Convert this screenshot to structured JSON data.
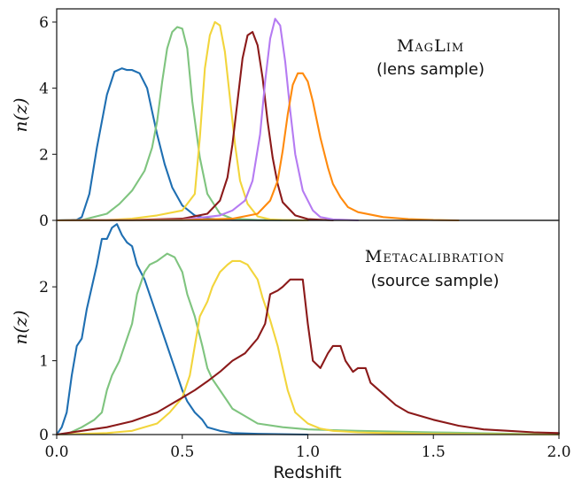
{
  "chart_data": [
    {
      "type": "line",
      "ylabel": "n(z)",
      "xlim": [
        0.0,
        2.0
      ],
      "ylim": [
        0,
        6.4
      ],
      "yticks": [
        0,
        2,
        4,
        6
      ],
      "annotation_title": "MagLim",
      "annotation_subtitle": "(lens sample)",
      "series": [
        {
          "color": "#1f6fb2",
          "x": [
            0.0,
            0.08,
            0.1,
            0.13,
            0.16,
            0.2,
            0.23,
            0.26,
            0.28,
            0.3,
            0.33,
            0.36,
            0.38,
            0.4,
            0.43,
            0.46,
            0.5,
            0.55,
            0.6,
            0.7,
            1.0
          ],
          "y": [
            0,
            0.02,
            0.1,
            0.8,
            2.2,
            3.8,
            4.5,
            4.6,
            4.55,
            4.55,
            4.45,
            4.0,
            3.3,
            2.6,
            1.7,
            1.0,
            0.45,
            0.15,
            0.05,
            0.01,
            0
          ]
        },
        {
          "color": "#7fc47f",
          "x": [
            0.0,
            0.1,
            0.2,
            0.25,
            0.3,
            0.35,
            0.38,
            0.4,
            0.42,
            0.44,
            0.46,
            0.48,
            0.5,
            0.52,
            0.54,
            0.57,
            0.6,
            0.65,
            0.7,
            0.8,
            1.0
          ],
          "y": [
            0,
            0.01,
            0.2,
            0.5,
            0.9,
            1.5,
            2.2,
            3.0,
            4.2,
            5.2,
            5.7,
            5.85,
            5.8,
            5.2,
            3.6,
            1.9,
            0.8,
            0.2,
            0.05,
            0.01,
            0
          ]
        },
        {
          "color": "#f2d53c",
          "x": [
            0.0,
            0.2,
            0.3,
            0.4,
            0.5,
            0.55,
            0.57,
            0.59,
            0.61,
            0.63,
            0.65,
            0.67,
            0.69,
            0.71,
            0.73,
            0.76,
            0.8,
            0.85,
            0.9,
            1.0
          ],
          "y": [
            0,
            0.01,
            0.05,
            0.15,
            0.3,
            0.8,
            2.5,
            4.6,
            5.6,
            6.0,
            5.9,
            5.1,
            3.7,
            2.3,
            1.2,
            0.5,
            0.12,
            0.03,
            0.01,
            0
          ]
        },
        {
          "color": "#8b1a1a",
          "x": [
            0.0,
            0.3,
            0.5,
            0.6,
            0.65,
            0.68,
            0.7,
            0.72,
            0.74,
            0.76,
            0.78,
            0.8,
            0.82,
            0.84,
            0.86,
            0.88,
            0.9,
            0.95,
            1.0,
            1.1
          ],
          "y": [
            0,
            0.01,
            0.05,
            0.2,
            0.6,
            1.3,
            2.3,
            3.6,
            4.9,
            5.6,
            5.7,
            5.3,
            4.3,
            3.0,
            1.9,
            1.1,
            0.55,
            0.15,
            0.04,
            0
          ]
        },
        {
          "color": "#b57bf2",
          "x": [
            0.0,
            0.5,
            0.65,
            0.7,
            0.75,
            0.78,
            0.81,
            0.83,
            0.85,
            0.87,
            0.89,
            0.91,
            0.93,
            0.95,
            0.98,
            1.02,
            1.05,
            1.1,
            1.2
          ],
          "y": [
            0,
            0.02,
            0.15,
            0.3,
            0.6,
            1.2,
            2.6,
            4.2,
            5.5,
            6.1,
            5.9,
            4.8,
            3.3,
            2.0,
            0.9,
            0.3,
            0.1,
            0.03,
            0
          ]
        },
        {
          "color": "#ff8a0d",
          "x": [
            0.0,
            0.5,
            0.7,
            0.8,
            0.85,
            0.88,
            0.9,
            0.92,
            0.94,
            0.96,
            0.98,
            1.0,
            1.02,
            1.05,
            1.08,
            1.1,
            1.13,
            1.16,
            1.2,
            1.3,
            1.4,
            1.5,
            1.6
          ],
          "y": [
            0,
            0.01,
            0.05,
            0.2,
            0.6,
            1.2,
            2.1,
            3.2,
            4.1,
            4.45,
            4.45,
            4.2,
            3.6,
            2.5,
            1.6,
            1.1,
            0.7,
            0.4,
            0.25,
            0.1,
            0.04,
            0.01,
            0
          ]
        }
      ]
    },
    {
      "type": "line",
      "xlabel": "Redshift",
      "ylabel": "n(z)",
      "xlim": [
        0.0,
        2.0
      ],
      "ylim": [
        0,
        2.9
      ],
      "xticks": [
        0.0,
        0.5,
        1.0,
        1.5,
        2.0
      ],
      "xtick_labels": [
        "0.0",
        "0.5",
        "1.0",
        "1.5",
        "2.0"
      ],
      "yticks": [
        0,
        1,
        2
      ],
      "annotation_title": "Metacalibration",
      "annotation_subtitle": "(source sample)",
      "series": [
        {
          "color": "#1f6fb2",
          "x": [
            0.0,
            0.02,
            0.04,
            0.06,
            0.08,
            0.1,
            0.12,
            0.14,
            0.16,
            0.18,
            0.2,
            0.22,
            0.24,
            0.26,
            0.28,
            0.3,
            0.32,
            0.35,
            0.38,
            0.4,
            0.43,
            0.46,
            0.5,
            0.52,
            0.55,
            0.58,
            0.6,
            0.65,
            0.7,
            0.8,
            1.0
          ],
          "y": [
            0,
            0.1,
            0.3,
            0.8,
            1.2,
            1.3,
            1.7,
            2.0,
            2.3,
            2.65,
            2.65,
            2.8,
            2.85,
            2.7,
            2.6,
            2.55,
            2.3,
            2.1,
            1.8,
            1.6,
            1.3,
            1.0,
            0.6,
            0.45,
            0.3,
            0.2,
            0.1,
            0.05,
            0.02,
            0.01,
            0
          ]
        },
        {
          "color": "#7fc47f",
          "x": [
            0.0,
            0.05,
            0.1,
            0.15,
            0.18,
            0.2,
            0.22,
            0.25,
            0.28,
            0.3,
            0.32,
            0.35,
            0.37,
            0.4,
            0.42,
            0.44,
            0.47,
            0.5,
            0.52,
            0.55,
            0.58,
            0.6,
            0.62,
            0.65,
            0.68,
            0.7,
            0.75,
            0.8,
            0.9,
            1.0,
            1.2,
            1.5,
            2.0
          ],
          "y": [
            0,
            0.02,
            0.1,
            0.2,
            0.3,
            0.6,
            0.8,
            1.0,
            1.3,
            1.5,
            1.9,
            2.2,
            2.3,
            2.35,
            2.4,
            2.45,
            2.4,
            2.2,
            1.9,
            1.6,
            1.2,
            0.9,
            0.75,
            0.6,
            0.45,
            0.35,
            0.25,
            0.15,
            0.1,
            0.07,
            0.05,
            0.03,
            0
          ]
        },
        {
          "color": "#f2d53c",
          "x": [
            0.0,
            0.2,
            0.3,
            0.4,
            0.45,
            0.5,
            0.53,
            0.55,
            0.57,
            0.6,
            0.62,
            0.65,
            0.68,
            0.7,
            0.73,
            0.76,
            0.8,
            0.82,
            0.85,
            0.88,
            0.9,
            0.92,
            0.95,
            1.0,
            1.05,
            1.1,
            1.2,
            1.3,
            1.5,
            2.0
          ],
          "y": [
            0,
            0.02,
            0.05,
            0.15,
            0.3,
            0.5,
            0.8,
            1.2,
            1.6,
            1.8,
            2.0,
            2.2,
            2.3,
            2.35,
            2.35,
            2.3,
            2.1,
            1.85,
            1.55,
            1.2,
            0.9,
            0.6,
            0.3,
            0.15,
            0.08,
            0.05,
            0.03,
            0.02,
            0.01,
            0
          ]
        },
        {
          "color": "#8b1a1a",
          "x": [
            0.0,
            0.1,
            0.2,
            0.3,
            0.4,
            0.45,
            0.5,
            0.55,
            0.6,
            0.65,
            0.7,
            0.75,
            0.8,
            0.83,
            0.85,
            0.88,
            0.9,
            0.93,
            0.95,
            0.98,
            1.0,
            1.02,
            1.05,
            1.08,
            1.1,
            1.13,
            1.15,
            1.18,
            1.2,
            1.23,
            1.25,
            1.3,
            1.35,
            1.4,
            1.5,
            1.6,
            1.7,
            1.8,
            1.9,
            2.0
          ],
          "y": [
            0,
            0.05,
            0.1,
            0.18,
            0.3,
            0.4,
            0.5,
            0.6,
            0.72,
            0.85,
            1.0,
            1.1,
            1.3,
            1.5,
            1.9,
            1.95,
            2.0,
            2.1,
            2.1,
            2.1,
            1.5,
            1.0,
            0.9,
            1.1,
            1.2,
            1.2,
            1.0,
            0.85,
            0.9,
            0.9,
            0.7,
            0.55,
            0.4,
            0.3,
            0.2,
            0.12,
            0.07,
            0.05,
            0.03,
            0.02
          ]
        }
      ]
    }
  ]
}
